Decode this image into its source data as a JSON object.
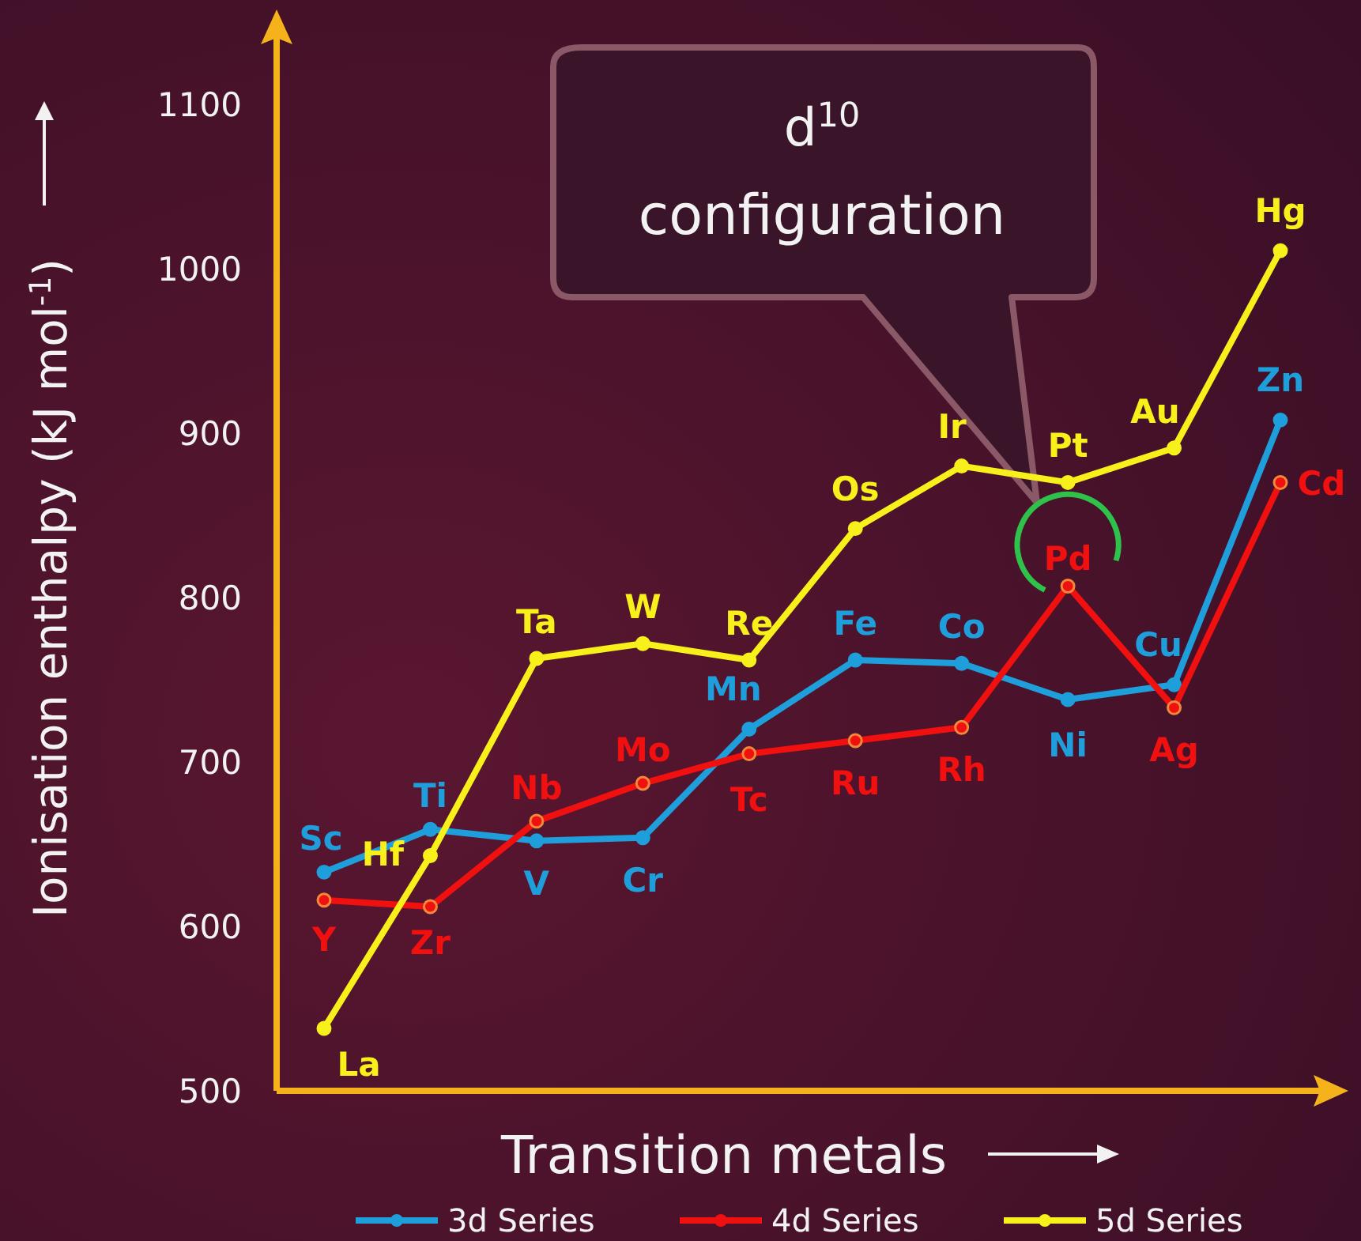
{
  "chart_data": {
    "type": "line",
    "xlabel": "Transition metals",
    "ylabel": "Ionisation enthalpy (kJ mol$^{-1}$)",
    "categories": [
      null,
      null,
      null,
      null,
      null,
      null,
      null,
      null,
      null,
      null
    ],
    "series": [
      {
        "name": "3d Series",
        "color": "#1e9fdc",
        "values": [
          633,
          659,
          652,
          654,
          720,
          762,
          760,
          738,
          747,
          908
        ],
        "value_labels": [
          "Sc",
          "Ti",
          "V",
          "Cr",
          "Mn",
          "Fe",
          "Co",
          "Ni",
          "Cu",
          "Zn"
        ]
      },
      {
        "name": "4d Series",
        "color": "#f01010",
        "values": [
          616,
          612,
          664,
          687,
          705,
          713,
          721,
          807,
          733,
          870
        ],
        "value_labels": [
          "Y",
          "Zr",
          "Nb",
          "Mo",
          "Tc",
          "Ru",
          "Rh",
          "Pd",
          "Ag",
          "Cd"
        ]
      },
      {
        "name": "5d Series",
        "color": "#f8f01a",
        "values": [
          538,
          643,
          763,
          772,
          762,
          842,
          880,
          870,
          891,
          1011
        ],
        "value_labels": [
          "La",
          "Hf",
          "Ta",
          "W",
          "Re",
          "Os",
          "Ir",
          "Pt",
          "Au",
          "Hg"
        ]
      }
    ],
    "ylim": [
      500,
      1150
    ],
    "yticks": [
      500,
      600,
      700,
      800,
      900,
      1000,
      1100
    ],
    "grid": false,
    "legend": "bottom",
    "marker": "circle",
    "line_style": "solid",
    "annotations": [
      "d$^{10}$ configuration"
    ]
  }
}
